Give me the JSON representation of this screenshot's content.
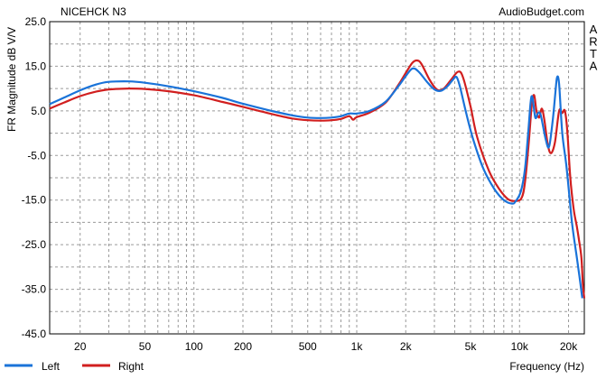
{
  "chart_data": {
    "type": "line",
    "title": "NICEHCK N3",
    "watermark": "AudioBudget.com",
    "side_text": "ARTA",
    "xlabel": "Frequency (Hz)",
    "ylabel": "FR Magnitude dB V/V",
    "x_scale": "log",
    "xlim": [
      13,
      25000
    ],
    "ylim": [
      -45,
      25
    ],
    "x_ticks": [
      {
        "value": 20,
        "label": "20"
      },
      {
        "value": 50,
        "label": "50"
      },
      {
        "value": 100,
        "label": "100"
      },
      {
        "value": 200,
        "label": "200"
      },
      {
        "value": 500,
        "label": "500"
      },
      {
        "value": 1000,
        "label": "1k"
      },
      {
        "value": 2000,
        "label": "2k"
      },
      {
        "value": 5000,
        "label": "5k"
      },
      {
        "value": 10000,
        "label": "10k"
      },
      {
        "value": 20000,
        "label": "20k"
      }
    ],
    "y_ticks": [
      {
        "value": 25,
        "label": "25.0"
      },
      {
        "value": 15,
        "label": "15.0"
      },
      {
        "value": 5,
        "label": "5.0"
      },
      {
        "value": -5,
        "label": "-5.0"
      },
      {
        "value": -15,
        "label": "-15.0"
      },
      {
        "value": -25,
        "label": "-25.0"
      },
      {
        "value": -35,
        "label": "-35.0"
      },
      {
        "value": -45,
        "label": "-45.0"
      }
    ],
    "grid": true,
    "legend_position": "bottom-left",
    "series": [
      {
        "name": "Left",
        "color": "#1a73d9",
        "points": [
          [
            13,
            6.5
          ],
          [
            16,
            8.0
          ],
          [
            20,
            9.6
          ],
          [
            25,
            10.9
          ],
          [
            30,
            11.5
          ],
          [
            40,
            11.6
          ],
          [
            50,
            11.3
          ],
          [
            70,
            10.5
          ],
          [
            100,
            9.4
          ],
          [
            150,
            7.9
          ],
          [
            200,
            6.6
          ],
          [
            300,
            5.0
          ],
          [
            400,
            4.0
          ],
          [
            500,
            3.5
          ],
          [
            600,
            3.4
          ],
          [
            700,
            3.5
          ],
          [
            800,
            3.8
          ],
          [
            900,
            4.4
          ],
          [
            1000,
            4.4
          ],
          [
            1200,
            5.0
          ],
          [
            1500,
            7.0
          ],
          [
            1800,
            10.5
          ],
          [
            2000,
            12.8
          ],
          [
            2200,
            14.5
          ],
          [
            2400,
            13.8
          ],
          [
            2700,
            11.5
          ],
          [
            3000,
            9.8
          ],
          [
            3300,
            9.5
          ],
          [
            3600,
            10.5
          ],
          [
            3900,
            12.0
          ],
          [
            4100,
            12.6
          ],
          [
            4300,
            10.5
          ],
          [
            4700,
            4.5
          ],
          [
            5200,
            -1.5
          ],
          [
            6000,
            -8.0
          ],
          [
            7000,
            -12.5
          ],
          [
            8000,
            -15.0
          ],
          [
            9000,
            -15.8
          ],
          [
            9500,
            -15.2
          ],
          [
            10200,
            -13.0
          ],
          [
            10800,
            -8.0
          ],
          [
            11300,
            0.0
          ],
          [
            11700,
            7.0
          ],
          [
            12000,
            8.0
          ],
          [
            12500,
            3.5
          ],
          [
            13000,
            4.5
          ],
          [
            13500,
            4.0
          ],
          [
            14500,
            -1.5
          ],
          [
            15200,
            -3.0
          ],
          [
            16000,
            3.0
          ],
          [
            16600,
            9.0
          ],
          [
            17000,
            12.5
          ],
          [
            17500,
            11.0
          ],
          [
            18300,
            0.0
          ],
          [
            19500,
            -8.0
          ],
          [
            21000,
            -20.0
          ],
          [
            22500,
            -28.0
          ],
          [
            23500,
            -33.0
          ],
          [
            24300,
            -37.0
          ]
        ]
      },
      {
        "name": "Right",
        "color": "#d11f1f",
        "points": [
          [
            13,
            5.5
          ],
          [
            16,
            6.9
          ],
          [
            20,
            8.3
          ],
          [
            25,
            9.3
          ],
          [
            30,
            9.8
          ],
          [
            40,
            10.0
          ],
          [
            50,
            9.9
          ],
          [
            70,
            9.4
          ],
          [
            100,
            8.5
          ],
          [
            150,
            7.0
          ],
          [
            200,
            5.9
          ],
          [
            300,
            4.3
          ],
          [
            400,
            3.3
          ],
          [
            500,
            2.9
          ],
          [
            600,
            2.8
          ],
          [
            700,
            2.9
          ],
          [
            800,
            3.2
          ],
          [
            900,
            3.8
          ],
          [
            950,
            3.0
          ],
          [
            1000,
            3.6
          ],
          [
            1200,
            4.6
          ],
          [
            1500,
            6.8
          ],
          [
            1800,
            10.8
          ],
          [
            2000,
            13.5
          ],
          [
            2200,
            15.8
          ],
          [
            2350,
            16.3
          ],
          [
            2500,
            15.5
          ],
          [
            2800,
            12.0
          ],
          [
            3100,
            9.8
          ],
          [
            3400,
            9.9
          ],
          [
            3800,
            12.0
          ],
          [
            4200,
            13.8
          ],
          [
            4500,
            12.5
          ],
          [
            5000,
            6.0
          ],
          [
            5500,
            -1.0
          ],
          [
            6500,
            -8.5
          ],
          [
            7500,
            -12.5
          ],
          [
            8500,
            -14.8
          ],
          [
            9500,
            -15.2
          ],
          [
            10300,
            -14.5
          ],
          [
            10800,
            -11.0
          ],
          [
            11400,
            -2.0
          ],
          [
            11900,
            6.5
          ],
          [
            12300,
            8.5
          ],
          [
            12700,
            5.0
          ],
          [
            13200,
            3.5
          ],
          [
            13700,
            5.5
          ],
          [
            14200,
            3.0
          ],
          [
            14900,
            -2.5
          ],
          [
            15600,
            -4.5
          ],
          [
            16500,
            -2.0
          ],
          [
            17500,
            5.0
          ],
          [
            18300,
            4.5
          ],
          [
            19000,
            5.0
          ],
          [
            19700,
            0.0
          ],
          [
            20500,
            -10.0
          ],
          [
            21500,
            -17.0
          ],
          [
            22500,
            -21.0
          ],
          [
            23200,
            -24.0
          ],
          [
            24000,
            -28.0
          ],
          [
            24500,
            -34.0
          ],
          [
            25000,
            -37.0
          ]
        ]
      }
    ]
  }
}
